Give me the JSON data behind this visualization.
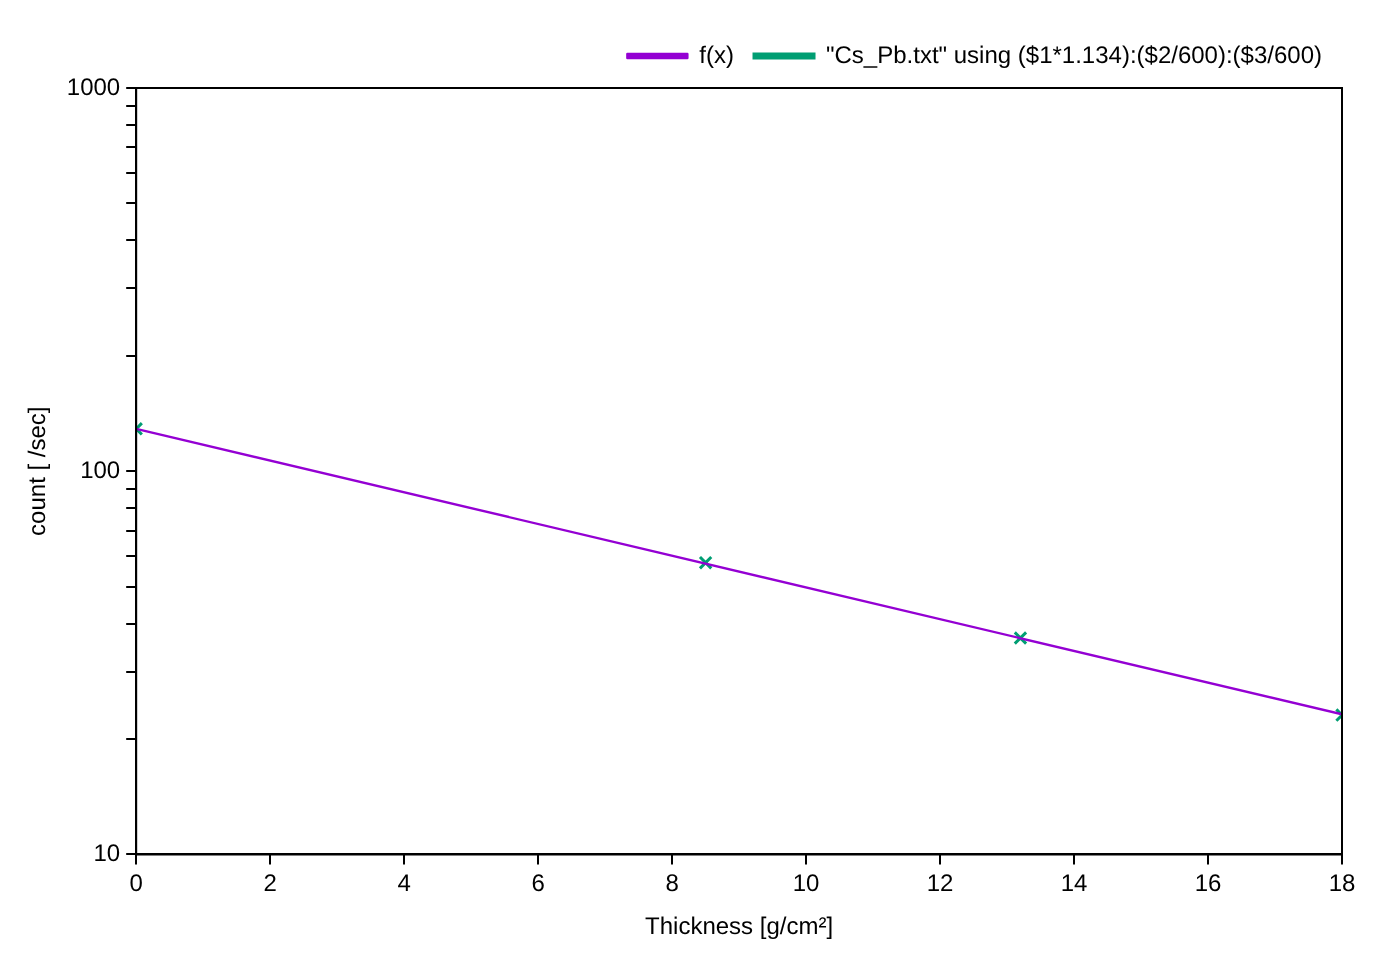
{
  "chart_data": {
    "type": "scatter",
    "xlabel": "Thickness [g/cm²]",
    "ylabel": "count [ /sec]",
    "log": "y",
    "grid": false,
    "legend": "top right",
    "xlim": [
      0,
      18
    ],
    "xticks": [
      0,
      2,
      4,
      6,
      8,
      10,
      12,
      14,
      16,
      18
    ],
    "ylim": [
      10,
      1000
    ],
    "yticks": [
      10,
      {
        "value": 20,
        "label": null
      },
      {
        "value": 30,
        "label": null
      },
      {
        "value": 40,
        "label": null
      },
      {
        "value": 50,
        "label": null
      },
      {
        "value": 60,
        "label": null
      },
      {
        "value": 70,
        "label": null
      },
      {
        "value": 80,
        "label": null
      },
      {
        "value": 90,
        "label": null
      },
      100,
      {
        "value": 200,
        "label": null
      },
      {
        "value": 300,
        "label": null
      },
      {
        "value": 400,
        "label": null
      },
      {
        "value": 500,
        "label": null
      },
      {
        "value": 600,
        "label": null
      },
      {
        "value": 700,
        "label": null
      },
      {
        "value": 800,
        "label": null
      },
      {
        "value": 900,
        "label": null
      },
      1000
    ],
    "series": [
      {
        "name": "f(x)",
        "type": "line",
        "color": "#9400d3",
        "marker": "none",
        "x": [
          0,
          18
        ],
        "values": [
          129,
          23.2
        ]
      },
      {
        "name": "\"Cs_Pb.txt\" using ($1*1.134):($2/600):($3/600)",
        "type": "scatter",
        "color": "#009e73",
        "marker": "cross",
        "x": [
          0,
          8.5,
          13.2,
          18
        ],
        "values": [
          129,
          57.7,
          36.7,
          23.1
        ]
      }
    ]
  }
}
